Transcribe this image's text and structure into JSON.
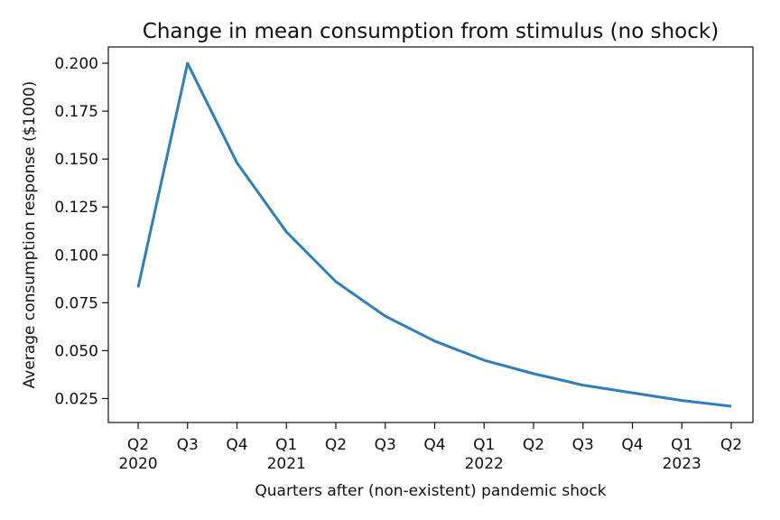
{
  "chart_data": {
    "type": "line",
    "title": "Change in mean consumption from stimulus (no shock)",
    "xlabel": "Quarters after (non-existent) pandemic shock",
    "ylabel": "Average consumption response ($1000)",
    "categories": [
      {
        "quarter": "Q2",
        "year": "2020"
      },
      {
        "quarter": "Q3",
        "year": ""
      },
      {
        "quarter": "Q4",
        "year": ""
      },
      {
        "quarter": "Q1",
        "year": "2021"
      },
      {
        "quarter": "Q2",
        "year": ""
      },
      {
        "quarter": "Q3",
        "year": ""
      },
      {
        "quarter": "Q4",
        "year": ""
      },
      {
        "quarter": "Q1",
        "year": "2022"
      },
      {
        "quarter": "Q2",
        "year": ""
      },
      {
        "quarter": "Q3",
        "year": ""
      },
      {
        "quarter": "Q4",
        "year": ""
      },
      {
        "quarter": "Q1",
        "year": "2023"
      },
      {
        "quarter": "Q2",
        "year": ""
      }
    ],
    "series": [
      {
        "values": [
          0.083,
          0.2,
          0.148,
          0.112,
          0.086,
          0.068,
          0.055,
          0.045,
          0.038,
          0.032,
          0.028,
          0.024,
          0.021
        ],
        "color": "#2f7ebc"
      }
    ],
    "yticks": [
      0.025,
      0.05,
      0.075,
      0.1,
      0.125,
      0.15,
      0.175,
      0.2
    ],
    "ylim": [
      0.0125,
      0.2085
    ],
    "grid": false,
    "legend": "none"
  }
}
